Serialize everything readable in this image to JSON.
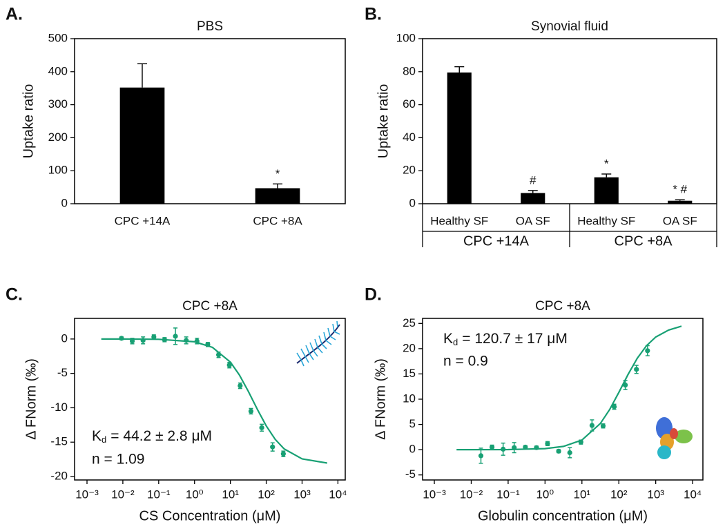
{
  "chart_data": [
    {
      "type": "bar",
      "panel_label": "A.",
      "title": "PBS",
      "y_label": "Uptake ratio",
      "categories": [
        "CPC +14A",
        "CPC +8A"
      ],
      "values": [
        352,
        47
      ],
      "errors": [
        72,
        13
      ],
      "annotations": [
        null,
        "*"
      ],
      "color": "#000000",
      "ylim": [
        0,
        500
      ],
      "yticks": [
        0,
        100,
        200,
        300,
        400,
        500
      ]
    },
    {
      "type": "bar",
      "panel_label": "B.",
      "title": "Synovial fluid",
      "y_label": "Uptake ratio",
      "categories": [
        "Healthy SF",
        "OA SF",
        "Healthy SF",
        "OA SF"
      ],
      "groups": [
        "CPC +14A",
        "CPC +8A"
      ],
      "values": [
        79.5,
        6.5,
        16,
        1.8
      ],
      "errors": [
        3.5,
        1.5,
        2,
        0.6
      ],
      "annotations": [
        null,
        "#",
        "*",
        "* #"
      ],
      "color": "#000000",
      "ylim": [
        0,
        100
      ],
      "yticks": [
        0,
        20,
        40,
        60,
        80,
        100
      ]
    },
    {
      "type": "scatter",
      "panel_label": "C.",
      "title": "CPC +8A",
      "x_label": "CS Concentration (μM)",
      "y_label": "Δ FNorm (‰)",
      "x": [
        0.00916,
        0.0183,
        0.0366,
        0.0732,
        0.146,
        0.293,
        0.586,
        1.17,
        2.34,
        4.69,
        9.38,
        18.75,
        37.5,
        75,
        150,
        300
      ],
      "values": [
        0.1,
        -0.3,
        -0.2,
        0.3,
        -0.1,
        0.4,
        -0.2,
        -0.3,
        -0.8,
        -2.3,
        -3.8,
        -6.8,
        -10.5,
        -12.9,
        -15.7,
        -16.7
      ],
      "errors": [
        0.2,
        0.4,
        0.5,
        0.3,
        0.3,
        1.2,
        0.5,
        0.4,
        0.3,
        0.4,
        0.4,
        0.4,
        0.4,
        0.5,
        0.6,
        0.4
      ],
      "fit": {
        "x": [
          0.0025,
          0.01,
          0.1,
          1,
          3.16,
          10,
          17.8,
          31.6,
          56.2,
          100,
          178,
          316,
          1000,
          5000
        ],
        "values": [
          0,
          0,
          -0.04,
          -0.4,
          -1.22,
          -3.37,
          -5.24,
          -7.61,
          -10.21,
          -12.64,
          -14.59,
          -15.98,
          -17.43,
          -18.04
        ]
      },
      "kd": {
        "symbol": "K",
        "subscript": "d",
        "text": "= 44.2 ± 2.8 μM"
      },
      "n_label": "n = 1.09",
      "color": "#18a074",
      "xscale": "log",
      "xlim": [
        0.00045,
        16000
      ],
      "xticks": [
        {
          "value": 0.001,
          "label": "10⁻³"
        },
        {
          "value": 0.01,
          "label": "10⁻²"
        },
        {
          "value": 0.1,
          "label": "10⁻¹"
        },
        {
          "value": 1,
          "label": "10⁰"
        },
        {
          "value": 10,
          "label": "10¹"
        },
        {
          "value": 100,
          "label": "10²"
        },
        {
          "value": 1000,
          "label": "10³"
        },
        {
          "value": 10000,
          "label": "10⁴"
        }
      ],
      "ylim": [
        -20.5,
        3
      ],
      "yticks": [
        0,
        -5,
        -10,
        -15,
        -20
      ]
    },
    {
      "type": "scatter",
      "panel_label": "D.",
      "title": "CPC +8A",
      "x_label": "Globulin concentration (μM)",
      "y_label": "Δ FNorm (‰)",
      "x": [
        0.0183,
        0.0366,
        0.0732,
        0.146,
        0.293,
        0.586,
        1.17,
        2.34,
        4.69,
        9.38,
        18.75,
        37.5,
        75,
        150,
        300,
        600
      ],
      "values": [
        -1.2,
        0.5,
        0.1,
        0.4,
        0.5,
        0.4,
        1.2,
        -0.3,
        -0.6,
        1.5,
        4.8,
        4.7,
        8.5,
        12.8,
        15.9,
        19.6
      ],
      "errors": [
        1.5,
        0.4,
        1.2,
        1,
        0.3,
        0.3,
        0.4,
        0.3,
        1,
        0.4,
        1.1,
        0.4,
        0.5,
        0.9,
        0.8,
        1
      ],
      "fit": {
        "x": [
          0.004,
          0.01,
          0.1,
          1,
          3.16,
          10,
          31.6,
          56.2,
          100,
          178,
          316,
          562,
          1000,
          2240,
          5000
        ],
        "values": [
          0,
          0,
          0.02,
          0.21,
          0.64,
          1.91,
          5.19,
          7.94,
          11.33,
          14.89,
          18.09,
          20.58,
          22.31,
          23.69,
          24.46
        ]
      },
      "kd": {
        "symbol": "K",
        "subscript": "d",
        "text": "= 120.7 ± 17 μM"
      },
      "n_label": "n = 0.9",
      "color": "#18a074",
      "xscale": "log",
      "xlim": [
        0.00048,
        19000
      ],
      "xticks": [
        {
          "value": 0.001,
          "label": "10⁻³"
        },
        {
          "value": 0.01,
          "label": "10⁻²"
        },
        {
          "value": 0.1,
          "label": "10⁻¹"
        },
        {
          "value": 1,
          "label": "10⁰"
        },
        {
          "value": 10,
          "label": "10¹"
        },
        {
          "value": 100,
          "label": "10²"
        },
        {
          "value": 1000,
          "label": "10³"
        },
        {
          "value": 10000,
          "label": "10⁴"
        }
      ],
      "ylim": [
        -6,
        26
      ],
      "yticks": [
        -5,
        0,
        5,
        10,
        15,
        20,
        25
      ]
    }
  ]
}
